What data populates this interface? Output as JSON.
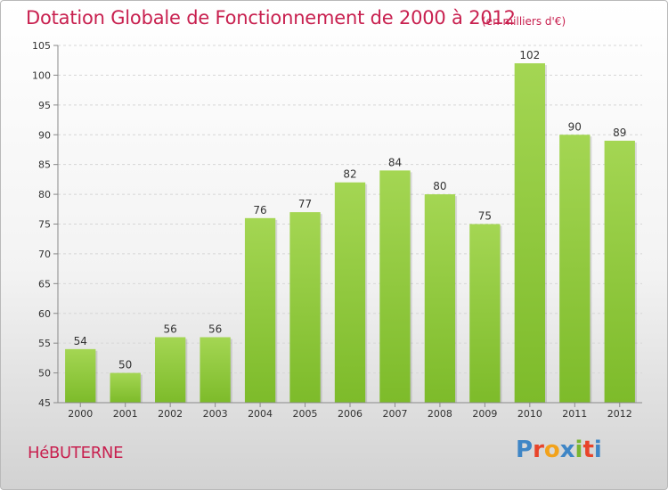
{
  "chart_data": {
    "type": "bar",
    "title": "Dotation Globale de Fonctionnement de 2000 à 2012",
    "subtitle": "(en milliers d'€)",
    "categories": [
      "2000",
      "2001",
      "2002",
      "2003",
      "2004",
      "2005",
      "2006",
      "2007",
      "2008",
      "2009",
      "2010",
      "2011",
      "2012"
    ],
    "values": [
      54,
      50,
      56,
      56,
      76,
      77,
      82,
      84,
      80,
      75,
      102,
      90,
      89
    ],
    "ylim": [
      45,
      105
    ],
    "yticks": [
      45,
      50,
      55,
      60,
      65,
      70,
      75,
      80,
      85,
      90,
      95,
      100,
      105
    ],
    "grid": true,
    "bar_color": "#7dbb2a",
    "bar_color_light": "#a4d653",
    "title_color": "#c8204f"
  },
  "location_name": "HéBUTERNE",
  "logo": {
    "text": "Proxiti",
    "colors": [
      "#3f86c6",
      "#e8442a",
      "#f2a21b",
      "#3f86c6",
      "#7ab530",
      "#e8442a",
      "#3f86c6"
    ]
  }
}
